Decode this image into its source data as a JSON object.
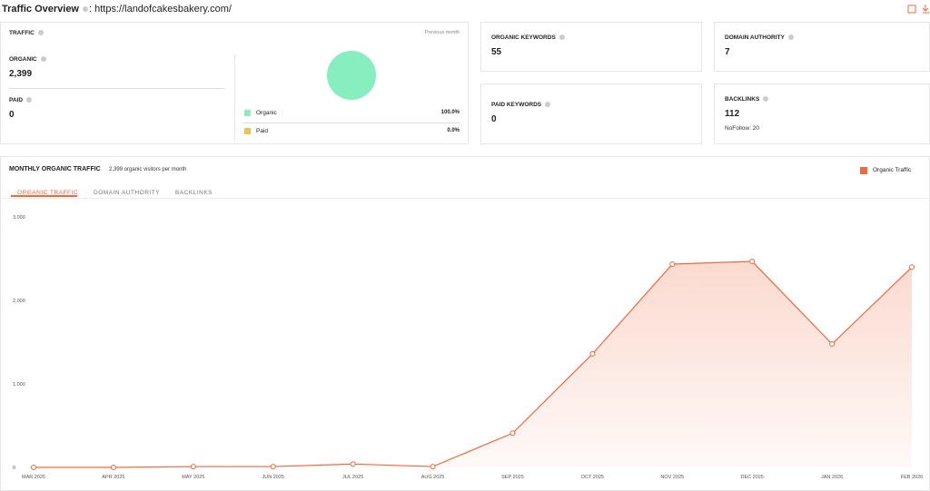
{
  "header": {
    "title": "Traffic Overview",
    "url": ": https://landofcakesbakery.com/"
  },
  "traffic": {
    "label": "TRAFFIC",
    "period": "Previous month",
    "organic_label": "ORGANIC",
    "organic_value": "2,399",
    "paid_label": "PAID",
    "paid_value": "0",
    "legend": [
      {
        "name": "Organic",
        "value": "100.0%",
        "color": "#86eebf"
      },
      {
        "name": "Paid",
        "value": "0.0%",
        "color": "#f5c04a"
      }
    ]
  },
  "cards": {
    "organic_keywords": {
      "label": "ORGANIC KEYWORDS",
      "value": "55"
    },
    "domain_authority": {
      "label": "DOMAIN AUTHORITY",
      "value": "7"
    },
    "paid_keywords": {
      "label": "PAID KEYWORDS",
      "value": "0"
    },
    "backlinks": {
      "label": "BACKLINKS",
      "value": "112",
      "note": "NoFollow: 20"
    }
  },
  "monthly": {
    "title": "MONTHLY ORGANIC TRAFFIC",
    "subtitle": "2,399 organic visitors per month",
    "tabs": [
      "ORGANIC TRAFFIC",
      "DOMAIN AUTHORITY",
      "BACKLINKS"
    ]
  },
  "chart_data": {
    "type": "line",
    "categories": [
      "MAR 2025",
      "APR 2025",
      "MAY 2025",
      "JUN 2025",
      "JUL 2025",
      "AUG 2025",
      "SEP 2025",
      "OCT 2025",
      "NOV 2025",
      "DEC 2025",
      "JAN 2026",
      "FEB 2026"
    ],
    "series": [
      {
        "name": "Organic Traffic",
        "color": "#ef6a3f",
        "values": [
          0,
          0,
          10,
          10,
          40,
          10,
          410,
          1360,
          2435,
          2467,
          1478,
          2399
        ]
      }
    ],
    "ylim": [
      0,
      3000
    ],
    "yticks": [
      0,
      {
        "value": 1000,
        "label": "1,000"
      },
      {
        "value": 2000,
        "label": "2,000"
      },
      {
        "value": 3000,
        "label": "3,000"
      }
    ],
    "grid": false
  }
}
